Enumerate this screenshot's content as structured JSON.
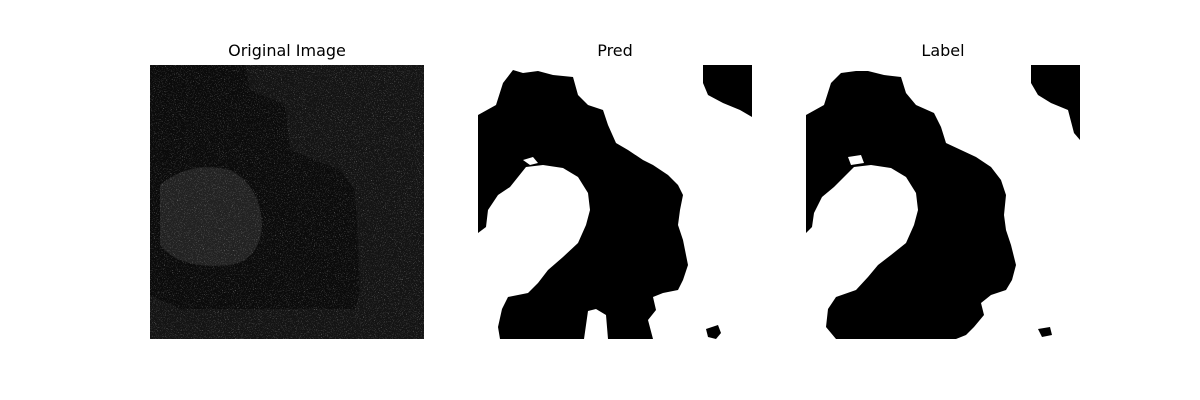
{
  "figure": {
    "panels": [
      {
        "title": "Original Image"
      },
      {
        "title": "Pred"
      },
      {
        "title": "Label"
      }
    ]
  },
  "colors": {
    "background": "#ffffff",
    "foreground_mask": "#000000",
    "noise_dark": "#1a1a1a",
    "noise_light": "#3c3c3c"
  }
}
